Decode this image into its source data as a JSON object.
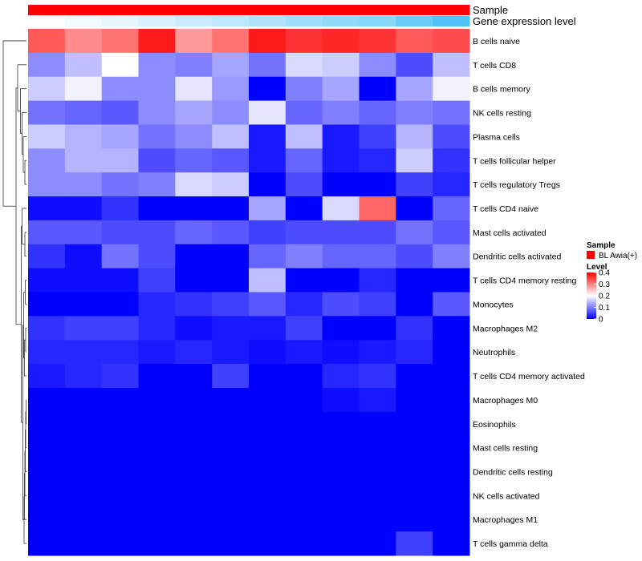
{
  "chart_data": {
    "type": "heatmap",
    "annotation_rows": [
      "Sample",
      "Gene expression level"
    ],
    "row_labels": [
      "B cells naive",
      "T cells CD8",
      "B cells memory",
      "NK cells resting",
      "Plasma cells",
      "T cells follicular helper",
      "T cells regulatory  Tregs",
      "T cells CD4 naive",
      "Mast cells activated",
      "Dendritic cells activated",
      "T cells CD4 memory resting",
      "Monocytes",
      "Macrophages M2",
      "Neutrophils",
      "T cells CD4 memory activated",
      "Macrophages M0",
      "Eosinophils",
      "Mast cells resting",
      "Dendritic cells resting",
      "NK cells activated",
      "Macrophages M1",
      "T cells gamma delta"
    ],
    "num_columns": 12,
    "values": [
      [
        0.33,
        0.29,
        0.31,
        0.38,
        0.28,
        0.31,
        0.38,
        0.36,
        0.37,
        0.36,
        0.33,
        0.34
      ],
      [
        0.11,
        0.15,
        0.2,
        0.11,
        0.1,
        0.13,
        0.09,
        0.17,
        0.16,
        0.11,
        0.06,
        0.15
      ],
      [
        0.16,
        0.19,
        0.11,
        0.11,
        0.18,
        0.12,
        0.0,
        0.1,
        0.13,
        0.0,
        0.13,
        0.19
      ],
      [
        0.09,
        0.08,
        0.07,
        0.11,
        0.13,
        0.11,
        0.18,
        0.08,
        0.1,
        0.08,
        0.1,
        0.09
      ],
      [
        0.16,
        0.14,
        0.13,
        0.09,
        0.11,
        0.15,
        0.02,
        0.15,
        0.02,
        0.05,
        0.14,
        0.06
      ],
      [
        0.11,
        0.14,
        0.14,
        0.06,
        0.08,
        0.07,
        0.02,
        0.08,
        0.02,
        0.03,
        0.16,
        0.04
      ],
      [
        0.11,
        0.11,
        0.09,
        0.1,
        0.17,
        0.16,
        0.0,
        0.06,
        0.0,
        0.0,
        0.05,
        0.03
      ],
      [
        0.01,
        0.01,
        0.04,
        0.0,
        0.0,
        0.0,
        0.13,
        0.0,
        0.17,
        0.32,
        0.0,
        0.08
      ],
      [
        0.07,
        0.07,
        0.06,
        0.06,
        0.08,
        0.07,
        0.05,
        0.06,
        0.06,
        0.06,
        0.09,
        0.07
      ],
      [
        0.04,
        0.01,
        0.09,
        0.06,
        0.0,
        0.0,
        0.08,
        0.1,
        0.08,
        0.08,
        0.06,
        0.1
      ],
      [
        0.01,
        0.01,
        0.01,
        0.05,
        0.0,
        0.0,
        0.15,
        0.0,
        0.0,
        0.03,
        0.0,
        0.0
      ],
      [
        0.0,
        0.0,
        0.0,
        0.03,
        0.04,
        0.05,
        0.07,
        0.03,
        0.06,
        0.05,
        0.0,
        0.07
      ],
      [
        0.04,
        0.05,
        0.05,
        0.03,
        0.01,
        0.02,
        0.02,
        0.05,
        0.0,
        0.0,
        0.04,
        0.0
      ],
      [
        0.03,
        0.03,
        0.03,
        0.02,
        0.03,
        0.02,
        0.01,
        0.02,
        0.01,
        0.02,
        0.03,
        0.0
      ],
      [
        0.02,
        0.03,
        0.04,
        0.0,
        0.0,
        0.05,
        0.0,
        0.0,
        0.03,
        0.04,
        0.0,
        0.0
      ],
      [
        0.0,
        0.0,
        0.0,
        0.0,
        0.0,
        0.0,
        0.0,
        0.0,
        0.01,
        0.02,
        0.0,
        0.0
      ],
      [
        0.0,
        0.0,
        0.0,
        0.0,
        0.0,
        0.0,
        0.0,
        0.0,
        0.0,
        0.0,
        0.0,
        0.0
      ],
      [
        0.0,
        0.0,
        0.0,
        0.0,
        0.0,
        0.0,
        0.0,
        0.0,
        0.0,
        0.0,
        0.0,
        0.0
      ],
      [
        0.0,
        0.0,
        0.0,
        0.0,
        0.0,
        0.0,
        0.0,
        0.0,
        0.0,
        0.0,
        0.0,
        0.0
      ],
      [
        0.0,
        0.0,
        0.0,
        0.0,
        0.0,
        0.0,
        0.0,
        0.0,
        0.0,
        0.0,
        0.0,
        0.0
      ],
      [
        0.0,
        0.0,
        0.0,
        0.0,
        0.0,
        0.0,
        0.0,
        0.0,
        0.0,
        0.0,
        0.0,
        0.0
      ],
      [
        0.0,
        0.0,
        0.0,
        0.0,
        0.0,
        0.0,
        0.0,
        0.0,
        0.0,
        0.0,
        0.05,
        0.0
      ]
    ],
    "gene_expression_level": [
      0.0,
      0.08,
      0.15,
      0.23,
      0.31,
      0.38,
      0.46,
      0.54,
      0.62,
      0.69,
      0.85,
      1.0
    ],
    "legend": {
      "sample_title": "Sample",
      "sample_entry": "BL Awia(+)",
      "level_title": "Level",
      "level_ticks": [
        0,
        0.1,
        0.2,
        0.3,
        0.4
      ],
      "level_range": [
        0,
        0.4
      ]
    },
    "colors": {
      "low": "#0000ff",
      "mid": "#ffffff",
      "high": "#ff0000",
      "sample": "#ff0000",
      "gel_low": "#ffffff",
      "gel_high": "#4fc3f7"
    }
  }
}
